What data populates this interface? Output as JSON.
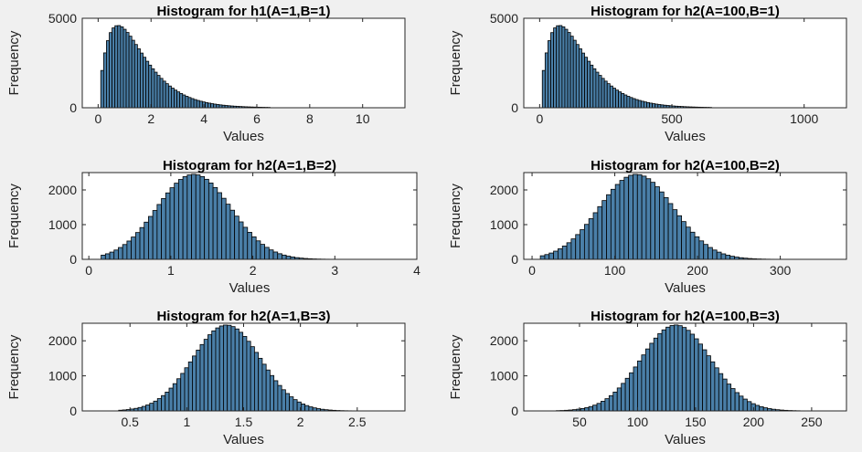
{
  "figure": {
    "background": "#f0f0f0",
    "bar_fill": "#4a7fa8",
    "bar_edge": "#000000",
    "axes_bg": "#ffffff"
  },
  "chart_data": [
    {
      "type": "bar",
      "title": "Histogram for h1(A=1,B=1)",
      "xlabel": "Values",
      "ylabel": "Frequency",
      "xlim": [
        -0.6,
        11.6
      ],
      "ylim": [
        0,
        5000
      ],
      "xticks": [
        0,
        2,
        4,
        6,
        8,
        10
      ],
      "yticks": [
        0,
        5000
      ],
      "dist": {
        "kind": "gamma",
        "shape": 2.0,
        "scale": 0.75,
        "peak": 4600,
        "bins": 60,
        "range": [
          0.1,
          6.5
        ]
      }
    },
    {
      "type": "bar",
      "title": "Histogram for h2(A=100,B=1)",
      "xlabel": "Values",
      "ylabel": "Frequency",
      "xlim": [
        -60,
        1160
      ],
      "ylim": [
        0,
        5000
      ],
      "xticks": [
        0,
        500,
        1000
      ],
      "yticks": [
        0,
        5000
      ],
      "dist": {
        "kind": "gamma",
        "shape": 2.0,
        "scale": 75,
        "peak": 4600,
        "bins": 60,
        "range": [
          10,
          650
        ]
      }
    },
    {
      "type": "bar",
      "title": "Histogram for h2(A=1,B=2)",
      "xlabel": "Values",
      "ylabel": "Frequency",
      "xlim": [
        -0.08,
        4.0
      ],
      "ylim": [
        0,
        2500
      ],
      "xticks": [
        0,
        1,
        2,
        3,
        4
      ],
      "yticks": [
        0,
        1000,
        2000
      ],
      "dist": {
        "kind": "normal",
        "mean": 1.28,
        "sd": 0.45,
        "peak": 2450,
        "bins": 60,
        "range": [
          0.15,
          3.3
        ]
      }
    },
    {
      "type": "bar",
      "title": "Histogram for h2(A=100,B=2)",
      "xlabel": "Values",
      "ylabel": "Frequency",
      "xlim": [
        -10,
        380
      ],
      "ylim": [
        0,
        2500
      ],
      "xticks": [
        0,
        100,
        200,
        300
      ],
      "yticks": [
        0,
        1000,
        2000
      ],
      "dist": {
        "kind": "normal",
        "mean": 126,
        "sd": 45,
        "peak": 2450,
        "bins": 60,
        "range": [
          10,
          330
        ]
      }
    },
    {
      "type": "bar",
      "title": "Histogram for h2(A=1,B=3)",
      "xlabel": "Values",
      "ylabel": "Frequency",
      "xlim": [
        0.08,
        2.92
      ],
      "ylim": [
        0,
        2500
      ],
      "xticks": [
        0.5,
        1,
        1.5,
        2,
        2.5
      ],
      "yticks": [
        0,
        1000,
        2000
      ],
      "dist": {
        "kind": "normal",
        "mean": 1.35,
        "sd": 0.3,
        "peak": 2450,
        "bins": 60,
        "range": [
          0.4,
          2.45
        ]
      }
    },
    {
      "type": "bar",
      "title": "Histogram for h2(A=100,B=3)",
      "xlabel": "Values",
      "ylabel": "Frequency",
      "xlim": [
        2,
        280
      ],
      "ylim": [
        0,
        2500
      ],
      "xticks": [
        50,
        100,
        150,
        200,
        250
      ],
      "yticks": [
        0,
        1000,
        2000
      ],
      "dist": {
        "kind": "normal",
        "mean": 133,
        "sd": 30,
        "peak": 2450,
        "bins": 60,
        "range": [
          30,
          240
        ]
      }
    }
  ]
}
